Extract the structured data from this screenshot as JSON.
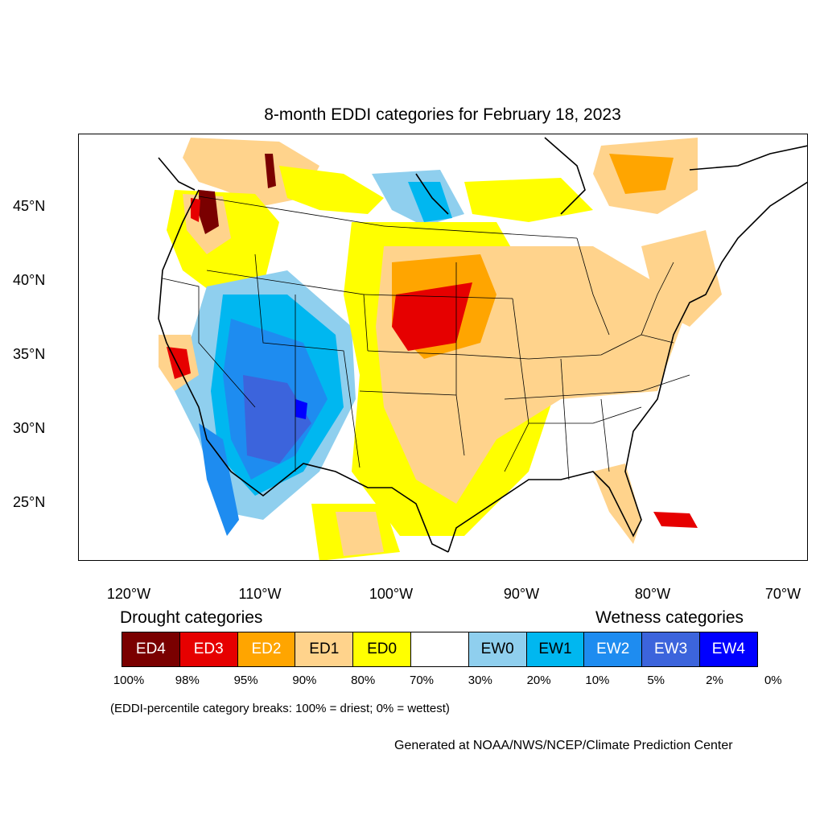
{
  "title": "8-month EDDI categories for February 18, 2023",
  "axes": {
    "latitude_labels": [
      "45°N",
      "40°N",
      "35°N",
      "30°N",
      "25°N"
    ],
    "longitude_labels": [
      "120°W",
      "110°W",
      "100°W",
      "90°W",
      "80°W",
      "70°W"
    ]
  },
  "legend": {
    "drought_heading": "Drought categories",
    "wetness_heading": "Wetness categories",
    "categories": [
      {
        "label": "ED4",
        "color": "#7a0000",
        "text_color": "#ffffff"
      },
      {
        "label": "ED3",
        "color": "#e60000",
        "text_color": "#ffffff"
      },
      {
        "label": "ED2",
        "color": "#ffa500",
        "text_color": "#ffffff"
      },
      {
        "label": "ED1",
        "color": "#ffd38c",
        "text_color": "#000000"
      },
      {
        "label": "ED0",
        "color": "#ffff00",
        "text_color": "#000000"
      },
      {
        "label": "",
        "color": "#ffffff",
        "text_color": "#000000"
      },
      {
        "label": "EW0",
        "color": "#8fcfee",
        "text_color": "#000000"
      },
      {
        "label": "EW1",
        "color": "#00b7f0",
        "text_color": "#000000"
      },
      {
        "label": "EW2",
        "color": "#1e8cf0",
        "text_color": "#ffffff"
      },
      {
        "label": "EW3",
        "color": "#3c64dc",
        "text_color": "#ffffff"
      },
      {
        "label": "EW4",
        "color": "#0000ff",
        "text_color": "#ffffff"
      }
    ],
    "percentiles": [
      "100%",
      "98%",
      "95%",
      "90%",
      "80%",
      "70%",
      "30%",
      "20%",
      "10%",
      "5%",
      "2%",
      "0%"
    ]
  },
  "note": "(EDDI-percentile category breaks: 100% = driest; 0% = wettest)",
  "credit": "Generated at NOAA/NWS/NCEP/Climate Prediction Center"
}
